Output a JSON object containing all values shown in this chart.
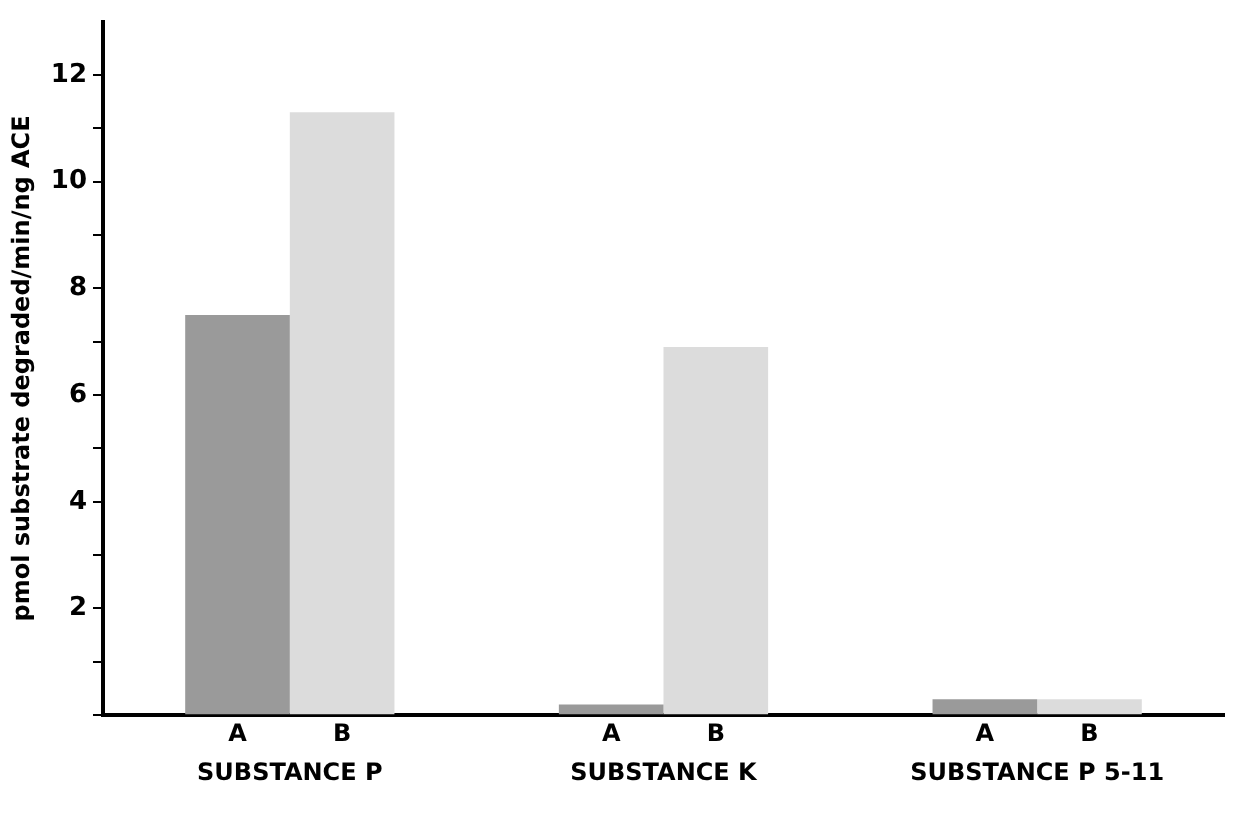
{
  "chart_data": {
    "type": "bar",
    "ylabel": "pmol substrate degraded/min/ng ACE",
    "categories": [
      "SUBSTANCE P",
      "SUBSTANCE K",
      "SUBSTANCE P 5-11"
    ],
    "series": [
      {
        "name": "A",
        "color": "#9a9a9a",
        "values": [
          7.5,
          0.2,
          0.3
        ]
      },
      {
        "name": "B",
        "color": "#dcdcdc",
        "values": [
          11.3,
          6.9,
          0.3
        ]
      }
    ],
    "ylim": [
      0,
      13
    ],
    "yticks": [
      {
        "value": 0,
        "label": null
      },
      {
        "value": 1,
        "label": null
      },
      2,
      {
        "value": 3,
        "label": null
      },
      4,
      {
        "value": 5,
        "label": null
      },
      6,
      {
        "value": 7,
        "label": null
      },
      8,
      {
        "value": 9,
        "label": null
      },
      10,
      {
        "value": 11,
        "label": null
      },
      12
    ],
    "grid": false,
    "legend": "bottom"
  }
}
